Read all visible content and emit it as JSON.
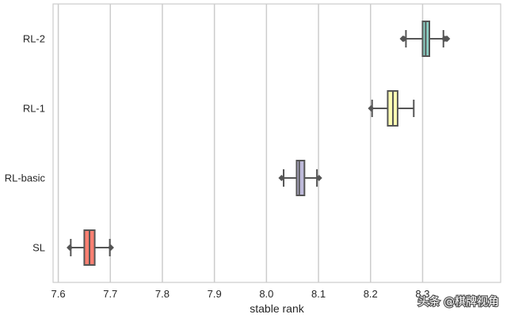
{
  "chart_data": {
    "type": "box",
    "xlabel": "stable rank",
    "ylabel": "",
    "xlim": [
      7.59,
      8.45
    ],
    "x_ticks": [
      "7.6",
      "7.7",
      "7.8",
      "7.9",
      "8.0",
      "8.1",
      "8.2",
      "8.3"
    ],
    "x_tick_values": [
      7.6,
      7.7,
      7.8,
      7.9,
      8.0,
      8.1,
      8.2,
      8.3
    ],
    "grid": "vertical",
    "categories": [
      "RL-2",
      "RL-1",
      "RL-basic",
      "SL"
    ],
    "boxes": [
      {
        "label": "RL-2",
        "whisker_low": 8.268,
        "q1": 8.3,
        "median": 8.306,
        "q3": 8.313,
        "whisker_high": 8.34,
        "outliers": [
          8.262,
          8.264,
          8.342,
          8.345,
          8.347
        ],
        "color": "#8dd3c7"
      },
      {
        "label": "RL-1",
        "whisker_low": 8.203,
        "q1": 8.233,
        "median": 8.243,
        "q3": 8.252,
        "whisker_high": 8.283,
        "outliers": [
          8.201
        ],
        "color": "#ffffb3"
      },
      {
        "label": "RL-basic",
        "whisker_low": 8.033,
        "q1": 8.058,
        "median": 8.063,
        "q3": 8.073,
        "whisker_high": 8.097,
        "outliers": [
          8.029,
          8.101
        ],
        "color": "#bebada"
      },
      {
        "label": "SL",
        "whisker_low": 7.624,
        "q1": 7.65,
        "median": 7.66,
        "q3": 7.67,
        "whisker_high": 7.699,
        "outliers": [
          7.622,
          7.701
        ],
        "color": "#fb8072"
      }
    ]
  },
  "watermark": "头条 @棋牌视角",
  "colors": {
    "axis": "#cccccc",
    "grid": "#cccccc",
    "edge": "#555555",
    "text": "#262626"
  }
}
